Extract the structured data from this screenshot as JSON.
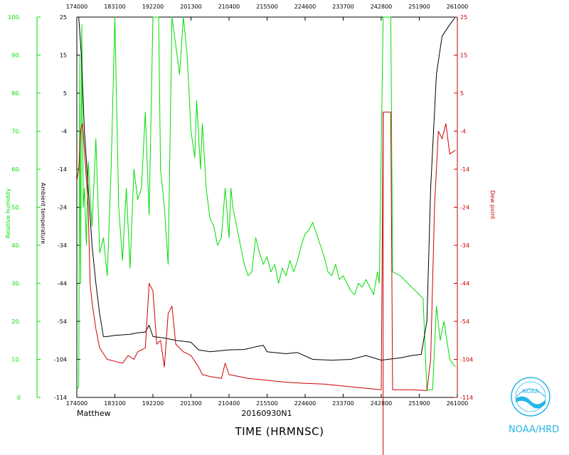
{
  "chart_data": {
    "type": "line",
    "storm": "Matthew",
    "flight": "20160930N1",
    "xlabel": "TIME (HRMNSC)",
    "y_left_outer_label": "Relative humidity",
    "y_left_inner_label": "Ambient temperature",
    "y_right_label": "Dew point",
    "x_ticks": [
      "174000",
      "183100",
      "192200",
      "201300",
      "210400",
      "215500",
      "224600",
      "233700",
      "242800",
      "251900",
      "261000"
    ],
    "rh_ticks": [
      "0",
      "10.",
      "20.",
      "30.",
      "40.",
      "50.",
      "60.",
      "70.",
      "80.",
      "90.",
      "100."
    ],
    "temp_ticks": [
      "-114",
      "-104",
      "-54",
      "-44",
      "-34",
      "-24",
      "-14",
      "-4",
      "5",
      "15",
      "25"
    ],
    "dew_ticks": [
      "-114",
      "-104",
      "-54",
      "-44",
      "-34",
      "-24",
      "-14",
      "-4",
      "5",
      "15",
      "25"
    ],
    "x_index_range": [
      0,
      10
    ],
    "y_fraction_range": [
      0,
      1
    ],
    "series": [
      {
        "color": "#00dd00",
        "points": [
          [
            0,
            0.02
          ],
          [
            0.05,
            0.03
          ],
          [
            0.08,
            0.9
          ],
          [
            0.1,
            0.3
          ],
          [
            0.13,
            0.98
          ],
          [
            0.17,
            0.5
          ],
          [
            0.2,
            0.55
          ],
          [
            0.25,
            0.4
          ],
          [
            0.3,
            0.62
          ],
          [
            0.4,
            0.45
          ],
          [
            0.5,
            0.68
          ],
          [
            0.6,
            0.38
          ],
          [
            0.7,
            0.42
          ],
          [
            0.8,
            0.32
          ],
          [
            0.9,
            0.6
          ],
          [
            1.0,
            1.0
          ],
          [
            1.1,
            0.5
          ],
          [
            1.2,
            0.36
          ],
          [
            1.3,
            0.55
          ],
          [
            1.4,
            0.34
          ],
          [
            1.5,
            0.6
          ],
          [
            1.6,
            0.52
          ],
          [
            1.7,
            0.55
          ],
          [
            1.8,
            0.75
          ],
          [
            1.9,
            0.48
          ],
          [
            2.0,
            1.0
          ],
          [
            2.15,
            1.0
          ],
          [
            2.2,
            0.6
          ],
          [
            2.3,
            0.5
          ],
          [
            2.4,
            0.35
          ],
          [
            2.5,
            1.0
          ],
          [
            2.7,
            0.85
          ],
          [
            2.8,
            1.0
          ],
          [
            2.9,
            0.9
          ],
          [
            3.0,
            0.7
          ],
          [
            3.1,
            0.63
          ],
          [
            3.15,
            0.78
          ],
          [
            3.25,
            0.6
          ],
          [
            3.3,
            0.72
          ],
          [
            3.4,
            0.55
          ],
          [
            3.5,
            0.47
          ],
          [
            3.6,
            0.45
          ],
          [
            3.7,
            0.4
          ],
          [
            3.8,
            0.42
          ],
          [
            3.9,
            0.55
          ],
          [
            4.0,
            0.42
          ],
          [
            4.05,
            0.55
          ],
          [
            4.1,
            0.5
          ],
          [
            4.2,
            0.45
          ],
          [
            4.3,
            0.4
          ],
          [
            4.4,
            0.35
          ],
          [
            4.5,
            0.32
          ],
          [
            4.6,
            0.33
          ],
          [
            4.7,
            0.42
          ],
          [
            4.8,
            0.38
          ],
          [
            4.9,
            0.35
          ],
          [
            5.0,
            0.37
          ],
          [
            5.1,
            0.33
          ],
          [
            5.2,
            0.35
          ],
          [
            5.3,
            0.3
          ],
          [
            5.4,
            0.34
          ],
          [
            5.5,
            0.32
          ],
          [
            5.6,
            0.36
          ],
          [
            5.7,
            0.33
          ],
          [
            5.8,
            0.36
          ],
          [
            5.9,
            0.4
          ],
          [
            6.0,
            0.43
          ],
          [
            6.1,
            0.44
          ],
          [
            6.2,
            0.46
          ],
          [
            6.3,
            0.43
          ],
          [
            6.4,
            0.4
          ],
          [
            6.5,
            0.37
          ],
          [
            6.6,
            0.33
          ],
          [
            6.7,
            0.32
          ],
          [
            6.8,
            0.35
          ],
          [
            6.9,
            0.31
          ],
          [
            7.0,
            0.32
          ],
          [
            7.1,
            0.3
          ],
          [
            7.2,
            0.28
          ],
          [
            7.3,
            0.27
          ],
          [
            7.4,
            0.3
          ],
          [
            7.5,
            0.29
          ],
          [
            7.6,
            0.31
          ],
          [
            7.7,
            0.29
          ],
          [
            7.8,
            0.27
          ],
          [
            7.9,
            0.33
          ],
          [
            7.95,
            0.3
          ],
          [
            8.05,
            1.0
          ],
          [
            8.25,
            1.0
          ],
          [
            8.3,
            0.33
          ],
          [
            8.5,
            0.32
          ],
          [
            8.7,
            0.3
          ],
          [
            8.9,
            0.28
          ],
          [
            9.0,
            0.27
          ],
          [
            9.1,
            0.26
          ],
          [
            9.2,
            0.02
          ],
          [
            9.35,
            0.02
          ],
          [
            9.45,
            0.24
          ],
          [
            9.55,
            0.15
          ],
          [
            9.65,
            0.2
          ],
          [
            9.8,
            0.1
          ],
          [
            9.95,
            0.08
          ]
        ]
      },
      {
        "color": "#000000",
        "points": [
          [
            0.05,
            1.0
          ],
          [
            0.12,
            0.9
          ],
          [
            0.2,
            0.7
          ],
          [
            0.3,
            0.55
          ],
          [
            0.4,
            0.4
          ],
          [
            0.5,
            0.3
          ],
          [
            0.6,
            0.22
          ],
          [
            0.7,
            0.16
          ],
          [
            0.8,
            0.16
          ],
          [
            1.0,
            0.163
          ],
          [
            1.4,
            0.166
          ],
          [
            1.6,
            0.17
          ],
          [
            1.8,
            0.172
          ],
          [
            1.9,
            0.19
          ],
          [
            2.0,
            0.16
          ],
          [
            2.3,
            0.156
          ],
          [
            2.6,
            0.15
          ],
          [
            3.0,
            0.145
          ],
          [
            3.2,
            0.125
          ],
          [
            3.5,
            0.12
          ],
          [
            3.7,
            0.122
          ],
          [
            4.0,
            0.125
          ],
          [
            4.4,
            0.126
          ],
          [
            4.7,
            0.133
          ],
          [
            4.9,
            0.137
          ],
          [
            5.0,
            0.12
          ],
          [
            5.5,
            0.115
          ],
          [
            5.8,
            0.118
          ],
          [
            6.2,
            0.1
          ],
          [
            6.7,
            0.098
          ],
          [
            7.2,
            0.1
          ],
          [
            7.6,
            0.11
          ],
          [
            8.0,
            0.098
          ],
          [
            8.5,
            0.104
          ],
          [
            8.8,
            0.11
          ],
          [
            9.05,
            0.113
          ],
          [
            9.2,
            0.2
          ],
          [
            9.3,
            0.55
          ],
          [
            9.45,
            0.85
          ],
          [
            9.6,
            0.95
          ],
          [
            9.8,
            0.98
          ],
          [
            9.95,
            1.0
          ]
        ]
      },
      {
        "color": "#cc0000",
        "points": [
          [
            0,
            0.57
          ],
          [
            0.05,
            0.6
          ],
          [
            0.1,
            0.7
          ],
          [
            0.15,
            0.72
          ],
          [
            0.2,
            0.65
          ],
          [
            0.3,
            0.5
          ],
          [
            0.35,
            0.3
          ],
          [
            0.4,
            0.25
          ],
          [
            0.5,
            0.18
          ],
          [
            0.6,
            0.13
          ],
          [
            0.8,
            0.1
          ],
          [
            1.0,
            0.095
          ],
          [
            1.2,
            0.09
          ],
          [
            1.35,
            0.11
          ],
          [
            1.5,
            0.1
          ],
          [
            1.6,
            0.12
          ],
          [
            1.8,
            0.13
          ],
          [
            1.9,
            0.3
          ],
          [
            2.0,
            0.28
          ],
          [
            2.1,
            0.14
          ],
          [
            2.2,
            0.15
          ],
          [
            2.3,
            0.08
          ],
          [
            2.4,
            0.22
          ],
          [
            2.5,
            0.24
          ],
          [
            2.6,
            0.14
          ],
          [
            2.8,
            0.12
          ],
          [
            3.0,
            0.11
          ],
          [
            3.2,
            0.08
          ],
          [
            3.3,
            0.06
          ],
          [
            3.5,
            0.055
          ],
          [
            3.8,
            0.05
          ],
          [
            3.9,
            0.09
          ],
          [
            4.0,
            0.06
          ],
          [
            4.5,
            0.05
          ],
          [
            5.0,
            0.045
          ],
          [
            5.5,
            0.04
          ],
          [
            6.0,
            0.037
          ],
          [
            6.5,
            0.035
          ],
          [
            7.0,
            0.03
          ],
          [
            7.5,
            0.025
          ],
          [
            8.0,
            0.02
          ],
          [
            8.05,
            0.75
          ],
          [
            8.25,
            0.75
          ],
          [
            8.3,
            0.02
          ],
          [
            8.8,
            0.02
          ],
          [
            9.2,
            0.018
          ],
          [
            9.3,
            0.1
          ],
          [
            9.4,
            0.5
          ],
          [
            9.5,
            0.7
          ],
          [
            9.6,
            0.68
          ],
          [
            9.7,
            0.72
          ],
          [
            9.8,
            0.64
          ],
          [
            9.95,
            0.65
          ]
        ]
      }
    ]
  },
  "branding": {
    "org": "NOAA/HRD",
    "logo_text": "NOAA"
  },
  "colors": {
    "rh": "#00dd00",
    "temp": "#000000",
    "dew": "#cc0000",
    "brand": "#26b5e8"
  }
}
